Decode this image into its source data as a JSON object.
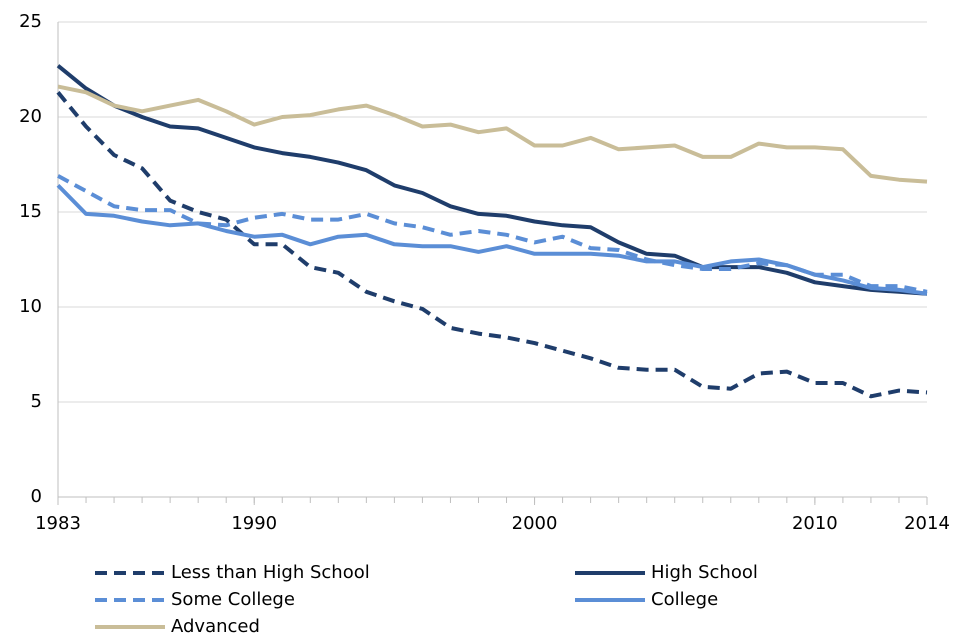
{
  "chart_data": {
    "type": "line",
    "x": [
      1983,
      1984,
      1985,
      1986,
      1987,
      1988,
      1989,
      1990,
      1991,
      1992,
      1993,
      1994,
      1995,
      1996,
      1997,
      1998,
      1999,
      2000,
      2001,
      2002,
      2003,
      2004,
      2005,
      2006,
      2007,
      2008,
      2009,
      2010,
      2011,
      2012,
      2013,
      2014
    ],
    "xlim": [
      1983,
      2014
    ],
    "xticks": [
      1983,
      1990,
      2000,
      2010,
      2014
    ],
    "ylim": [
      0,
      25
    ],
    "yticks": [
      0,
      5,
      10,
      15,
      20,
      25
    ],
    "grid": true,
    "series": [
      {
        "name": "Less than High School",
        "color": "#1f3d6b",
        "dashed": true,
        "values": [
          21.3,
          19.5,
          18.0,
          17.3,
          15.6,
          15.0,
          14.6,
          13.3,
          13.3,
          12.1,
          11.8,
          10.8,
          10.3,
          9.9,
          8.9,
          8.6,
          8.4,
          8.1,
          7.7,
          7.3,
          6.8,
          6.7,
          6.7,
          5.8,
          5.7,
          6.5,
          6.6,
          6.0,
          6.0,
          5.3,
          5.6,
          5.5
        ]
      },
      {
        "name": "High School",
        "color": "#1f3d6b",
        "dashed": false,
        "values": [
          22.7,
          21.5,
          20.6,
          20.0,
          19.5,
          19.4,
          18.9,
          18.4,
          18.1,
          17.9,
          17.6,
          17.2,
          16.4,
          16.0,
          15.3,
          14.9,
          14.8,
          14.5,
          14.3,
          14.2,
          13.4,
          12.8,
          12.7,
          12.1,
          12.1,
          12.1,
          11.8,
          11.3,
          11.1,
          10.9,
          10.8,
          10.7
        ]
      },
      {
        "name": "Some College",
        "color": "#5b8ed6",
        "dashed": true,
        "values": [
          16.9,
          16.1,
          15.3,
          15.1,
          15.1,
          14.4,
          14.3,
          14.7,
          14.9,
          14.6,
          14.6,
          14.9,
          14.4,
          14.2,
          13.8,
          14.0,
          13.8,
          13.4,
          13.7,
          13.1,
          13.0,
          12.5,
          12.2,
          12.0,
          12.0,
          12.3,
          12.2,
          11.7,
          11.7,
          11.1,
          11.1,
          10.8
        ]
      },
      {
        "name": "College",
        "color": "#5b8ed6",
        "dashed": false,
        "values": [
          16.4,
          14.9,
          14.8,
          14.5,
          14.3,
          14.4,
          14.0,
          13.7,
          13.8,
          13.3,
          13.7,
          13.8,
          13.3,
          13.2,
          13.2,
          12.9,
          13.2,
          12.8,
          12.8,
          12.8,
          12.7,
          12.4,
          12.4,
          12.1,
          12.4,
          12.5,
          12.2,
          11.7,
          11.4,
          11.0,
          10.9,
          10.7
        ]
      },
      {
        "name": "Advanced",
        "color": "#c9bd98",
        "dashed": false,
        "values": [
          21.6,
          21.3,
          20.6,
          20.3,
          20.6,
          20.9,
          20.3,
          19.6,
          20.0,
          20.1,
          20.4,
          20.6,
          20.1,
          19.5,
          19.6,
          19.2,
          19.4,
          18.5,
          18.5,
          18.9,
          18.3,
          18.4,
          18.5,
          17.9,
          17.9,
          18.6,
          18.4,
          18.4,
          18.3,
          16.9,
          16.7,
          16.6
        ]
      }
    ]
  }
}
